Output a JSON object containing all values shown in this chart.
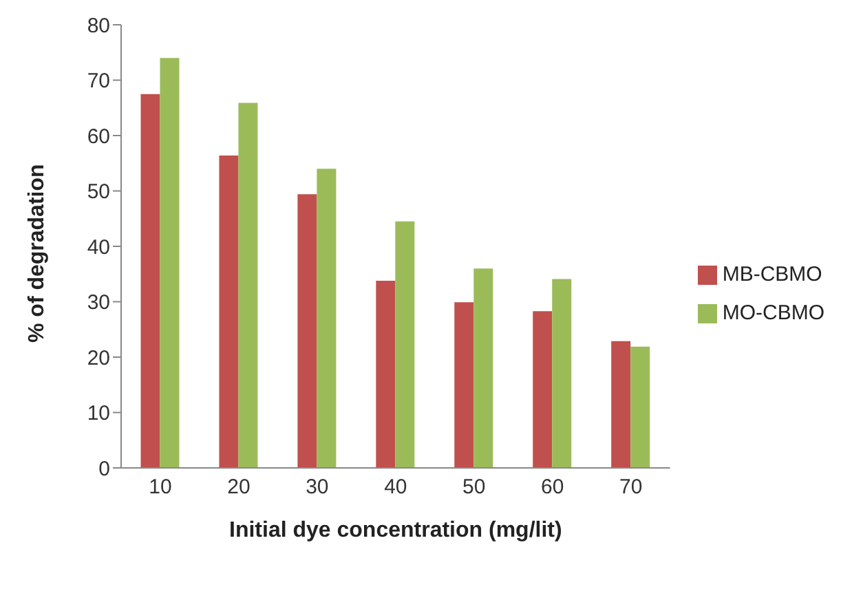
{
  "chart_data": {
    "type": "bar",
    "xlabel": "Initial dye concentration (mg/lit)",
    "ylabel": "% of degradation",
    "categories": [
      "10",
      "20",
      "30",
      "40",
      "50",
      "60",
      "70"
    ],
    "series": [
      {
        "name": "MB-CBMO",
        "color": "#c0504d",
        "values": [
          67.5,
          56.4,
          49.4,
          33.8,
          29.9,
          28.3,
          22.9
        ]
      },
      {
        "name": "MO-CBMO",
        "color": "#9bbb59",
        "values": [
          74.0,
          65.9,
          54.0,
          44.5,
          36.0,
          34.1,
          21.9
        ]
      }
    ],
    "ylim": [
      0,
      80
    ],
    "yticks": [
      0,
      10,
      20,
      30,
      40,
      50,
      60,
      70,
      80
    ],
    "grid": false,
    "legend": "right"
  }
}
